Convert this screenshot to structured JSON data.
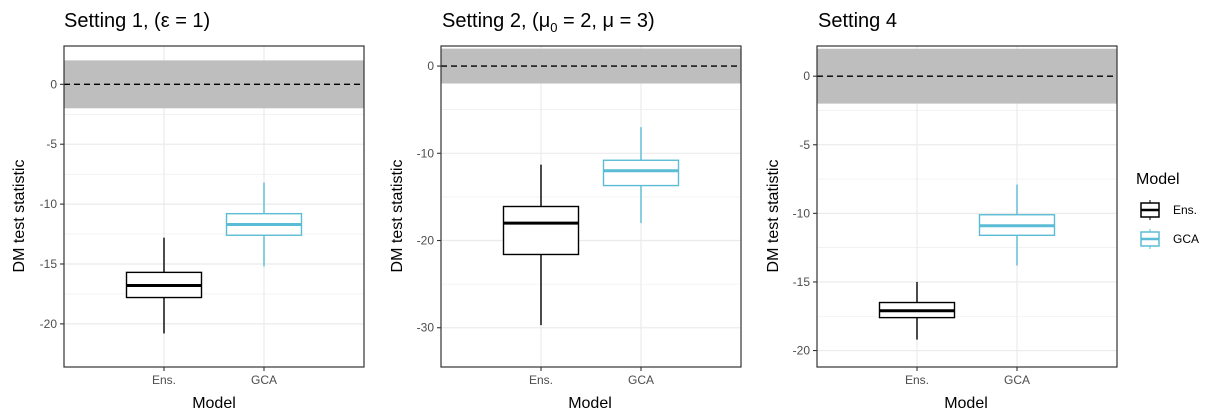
{
  "legend": {
    "title": "Model",
    "entries": [
      {
        "label": "Ens.",
        "color": "#000000"
      },
      {
        "label": "GCA",
        "color": "#5bbcd6"
      }
    ]
  },
  "colors": {
    "band": "#bebebe",
    "grid": "#ebebeb",
    "border": "#333333"
  },
  "chart_data": [
    {
      "type": "box",
      "title": "Setting 1, (ε = 1)",
      "xlabel": "Model",
      "ylabel": "DM test statistic",
      "categories": [
        "Ens.",
        "GCA"
      ],
      "ylim": [
        -23.6,
        3.2
      ],
      "yticks": [
        0,
        -5,
        -10,
        -15,
        -20
      ],
      "band": [
        -2,
        2
      ],
      "reference_line": 0,
      "boxes": [
        {
          "name": "Ens.",
          "min": -20.8,
          "q1": -17.8,
          "median": -16.8,
          "q3": -15.7,
          "max": -12.8
        },
        {
          "name": "GCA",
          "min": -15.2,
          "q1": -12.6,
          "median": -11.7,
          "q3": -10.8,
          "max": -8.2
        }
      ]
    },
    {
      "type": "box",
      "title": "Setting 2, (μ0 = 2, μ = 3)",
      "title_parts": {
        "pre": "Setting 2, (μ",
        "sub": "0",
        "post": " = 2, μ = 3)"
      },
      "xlabel": "Model",
      "ylabel": "DM test statistic",
      "categories": [
        "Ens.",
        "GCA"
      ],
      "ylim": [
        -34.5,
        2.3
      ],
      "yticks": [
        0,
        -10,
        -20,
        -30
      ],
      "band": [
        -2,
        2
      ],
      "reference_line": 0,
      "boxes": [
        {
          "name": "Ens.",
          "min": -29.7,
          "q1": -21.6,
          "median": -18.0,
          "q3": -16.1,
          "max": -11.3
        },
        {
          "name": "GCA",
          "min": -18.0,
          "q1": -13.7,
          "median": -12.0,
          "q3": -10.8,
          "max": -7.0
        }
      ]
    },
    {
      "type": "box",
      "title": "Setting 4",
      "xlabel": "Model",
      "ylabel": "DM test statistic",
      "categories": [
        "Ens.",
        "GCA"
      ],
      "ylim": [
        -21.2,
        2.2
      ],
      "yticks": [
        0,
        -5,
        -10,
        -15,
        -20
      ],
      "band": [
        -2,
        2
      ],
      "reference_line": 0,
      "boxes": [
        {
          "name": "Ens.",
          "min": -19.2,
          "q1": -17.6,
          "median": -17.1,
          "q3": -16.5,
          "max": -15.0
        },
        {
          "name": "GCA",
          "min": -13.8,
          "q1": -11.6,
          "median": -10.9,
          "q3": -10.1,
          "max": -7.9
        }
      ]
    }
  ]
}
